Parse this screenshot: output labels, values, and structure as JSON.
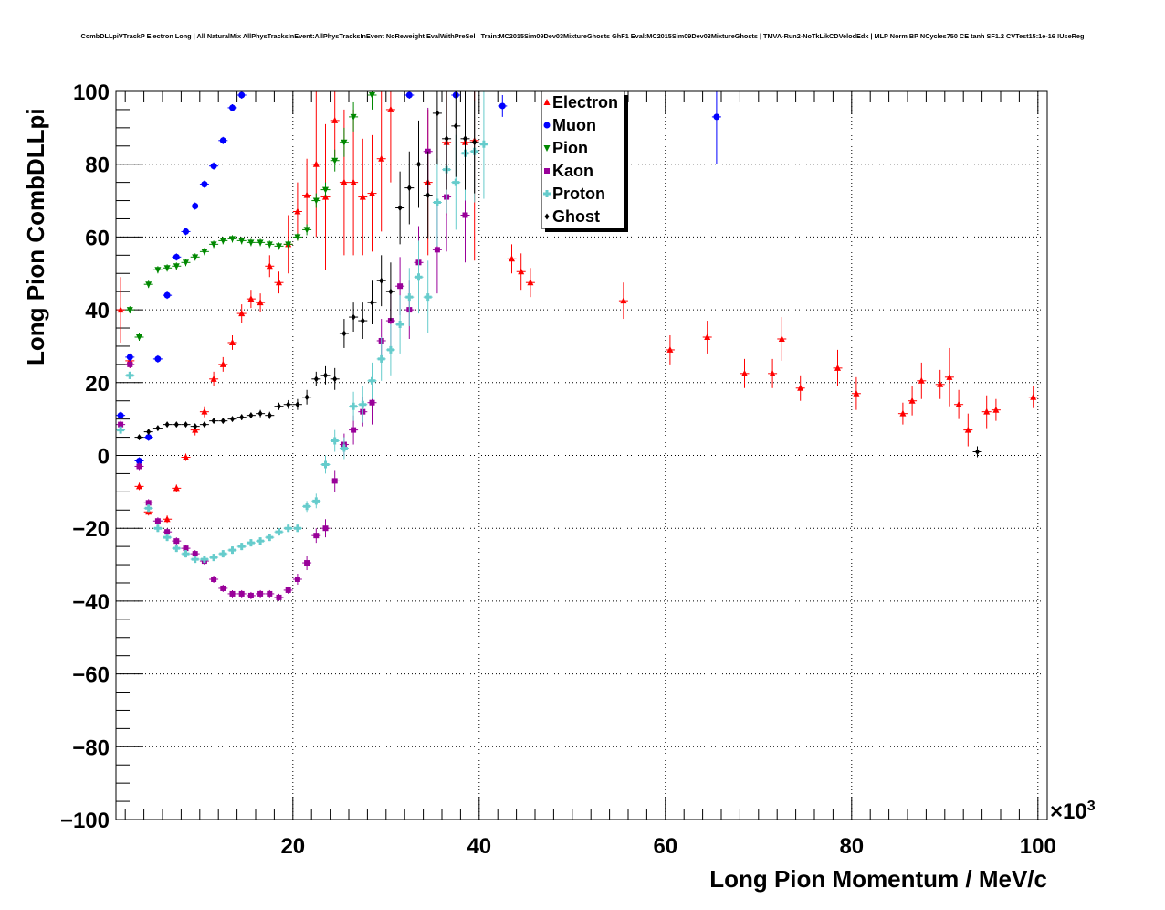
{
  "chart_data": {
    "type": "scatter",
    "title": "CombDLLpiVTrackP Electron Long | All NaturalMix AllPhysTracksInEvent:AllPhysTracksInEvent NoReweight EvalWithPreSel | Train:MC2015Sim09Dev03MixtureGhosts GhF1 Eval:MC2015Sim09Dev03MixtureGhosts | TMVA-Run2-NoTkLikCDVelodEdx | MLP Norm BP NCycles750 CE tanh SF1.2 CVTest15:1e-16 !UseReg",
    "xlabel": "Long Pion Momentum / MeV/c",
    "ylabel": "Long Pion CombDLLpi",
    "x_multiplier": "×10",
    "x_multiplier_exp": "3",
    "xlim": [
      1,
      101
    ],
    "ylim": [
      -100,
      100
    ],
    "xticks": [
      "20",
      "40",
      "60",
      "80",
      "100"
    ],
    "xtick_values": [
      20,
      40,
      60,
      80,
      100
    ],
    "yticks": [
      "−100",
      "−80",
      "−60",
      "−40",
      "−20",
      "0",
      "20",
      "40",
      "60",
      "80",
      "100"
    ],
    "ytick_values": [
      -100,
      -80,
      -60,
      -40,
      -20,
      0,
      20,
      40,
      60,
      80,
      100
    ],
    "grid": true,
    "legend_position": "top-center",
    "series": [
      {
        "name": "Electron",
        "color": "#ff0000",
        "marker": "triangle-up",
        "points": [
          [
            1.5,
            40,
            9
          ],
          [
            2.5,
            26,
            2
          ],
          [
            3.5,
            -8.5,
            1
          ],
          [
            4.5,
            -15.5,
            1
          ],
          [
            6.5,
            -17.5,
            1
          ],
          [
            7.5,
            -9,
            1
          ],
          [
            8.5,
            -0.5,
            1
          ],
          [
            9.5,
            7,
            1.5
          ],
          [
            10.5,
            12,
            1.5
          ],
          [
            11.5,
            21,
            2
          ],
          [
            12.5,
            25,
            2
          ],
          [
            13.5,
            31,
            2
          ],
          [
            14.5,
            39,
            2.5
          ],
          [
            15.5,
            43,
            2.5
          ],
          [
            16.5,
            42,
            2.5
          ],
          [
            17.5,
            52,
            3
          ],
          [
            18.5,
            47.5,
            3
          ],
          [
            19.5,
            58,
            8
          ],
          [
            20.5,
            67,
            8
          ],
          [
            21.5,
            71.5,
            10
          ],
          [
            22.5,
            80,
            20
          ],
          [
            23.5,
            71,
            20
          ],
          [
            24.5,
            92,
            10
          ],
          [
            25.5,
            75,
            20
          ],
          [
            26.5,
            75,
            20
          ],
          [
            27.5,
            71,
            16
          ],
          [
            28.5,
            72,
            16
          ],
          [
            29.5,
            81.5,
            20
          ],
          [
            30.5,
            95,
            20
          ],
          [
            34.5,
            75,
            20
          ],
          [
            36.5,
            86,
            20
          ],
          [
            38.5,
            86,
            20
          ],
          [
            39.5,
            86.5,
            33
          ],
          [
            43.5,
            54,
            4
          ],
          [
            44.5,
            50.5,
            5
          ],
          [
            45.5,
            47.5,
            4
          ],
          [
            55.5,
            42.5,
            5
          ],
          [
            60.5,
            29,
            4
          ],
          [
            64.5,
            32.5,
            4.5
          ],
          [
            68.5,
            22.5,
            4
          ],
          [
            71.5,
            22.5,
            4
          ],
          [
            72.5,
            32,
            6
          ],
          [
            74.5,
            18.5,
            3.5
          ],
          [
            78.5,
            24,
            5
          ],
          [
            80.5,
            17,
            4.5
          ],
          [
            85.5,
            11.5,
            3
          ],
          [
            86.5,
            15,
            4
          ],
          [
            87.5,
            20.5,
            5
          ],
          [
            89.5,
            19.5,
            4
          ],
          [
            90.5,
            21.5,
            8
          ],
          [
            91.5,
            14,
            4
          ],
          [
            92.5,
            7,
            4.5
          ],
          [
            94.5,
            12,
            4.5
          ],
          [
            95.5,
            12.5,
            3
          ],
          [
            99.5,
            16,
            3
          ]
        ]
      },
      {
        "name": "Muon",
        "color": "#0000ff",
        "marker": "circle",
        "points": [
          [
            1.5,
            11,
            1
          ],
          [
            2.5,
            27,
            1
          ],
          [
            3.5,
            -1.5,
            1
          ],
          [
            4.5,
            5,
            1
          ],
          [
            5.5,
            26.5,
            1
          ],
          [
            6.5,
            44,
            1
          ],
          [
            7.5,
            54.5,
            1
          ],
          [
            8.5,
            61.5,
            1
          ],
          [
            9.5,
            68.5,
            1
          ],
          [
            10.5,
            74.5,
            1
          ],
          [
            11.5,
            79.5,
            1
          ],
          [
            12.5,
            86.5,
            1
          ],
          [
            13.5,
            95.5,
            1
          ],
          [
            14.5,
            99,
            1
          ],
          [
            32.5,
            99,
            1
          ],
          [
            37.5,
            99,
            1
          ],
          [
            42.5,
            96,
            3
          ],
          [
            65.5,
            93,
            13
          ]
        ]
      },
      {
        "name": "Pion",
        "color": "#008800",
        "marker": "triangle-down",
        "points": [
          [
            2.5,
            40,
            1
          ],
          [
            3.5,
            32.5,
            1
          ],
          [
            4.5,
            47,
            1
          ],
          [
            5.5,
            51,
            1
          ],
          [
            6.5,
            51.5,
            1
          ],
          [
            7.5,
            52,
            1
          ],
          [
            8.5,
            53,
            1
          ],
          [
            9.5,
            54.5,
            1
          ],
          [
            10.5,
            56,
            1
          ],
          [
            11.5,
            58,
            1
          ],
          [
            12.5,
            59,
            1
          ],
          [
            13.5,
            59.5,
            1
          ],
          [
            14.5,
            59,
            1
          ],
          [
            15.5,
            58.5,
            1
          ],
          [
            16.5,
            58.5,
            1
          ],
          [
            17.5,
            58,
            1
          ],
          [
            18.5,
            57.5,
            1
          ],
          [
            19.5,
            58,
            1
          ],
          [
            20.5,
            60,
            1
          ],
          [
            21.5,
            62,
            1.5
          ],
          [
            22.5,
            70,
            2
          ],
          [
            23.5,
            73,
            2
          ],
          [
            24.5,
            81,
            3
          ],
          [
            25.5,
            86,
            4
          ],
          [
            26.5,
            93,
            4
          ],
          [
            28.5,
            99,
            4
          ]
        ]
      },
      {
        "name": "Kaon",
        "color": "#990099",
        "marker": "square",
        "points": [
          [
            1.5,
            8.5,
            1
          ],
          [
            2.5,
            25,
            1
          ],
          [
            3.5,
            -3,
            1
          ],
          [
            4.5,
            -13,
            1
          ],
          [
            5.5,
            -18,
            1
          ],
          [
            6.5,
            -21,
            1
          ],
          [
            7.5,
            -23.5,
            1
          ],
          [
            8.5,
            -25.5,
            1
          ],
          [
            9.5,
            -27,
            1
          ],
          [
            10.5,
            -29,
            1
          ],
          [
            11.5,
            -34,
            1
          ],
          [
            12.5,
            -36.5,
            1
          ],
          [
            13.5,
            -38,
            1
          ],
          [
            14.5,
            -38,
            1
          ],
          [
            15.5,
            -38.5,
            1
          ],
          [
            16.5,
            -38,
            1
          ],
          [
            17.5,
            -38,
            1
          ],
          [
            18.5,
            -39,
            1
          ],
          [
            19.5,
            -37,
            1
          ],
          [
            20.5,
            -34,
            1.5
          ],
          [
            21.5,
            -29.5,
            2
          ],
          [
            22.5,
            -22,
            2
          ],
          [
            23.5,
            -20,
            2.5
          ],
          [
            24.5,
            -7,
            3
          ],
          [
            25.5,
            3,
            3
          ],
          [
            26.5,
            7,
            4
          ],
          [
            27.5,
            12,
            4
          ],
          [
            28.5,
            14.5,
            6
          ],
          [
            29.5,
            31.5,
            6
          ],
          [
            30.5,
            37,
            8
          ],
          [
            31.5,
            46.5,
            8
          ],
          [
            32.5,
            40,
            8
          ],
          [
            33.5,
            53,
            10
          ],
          [
            34.5,
            83.5,
            12
          ],
          [
            35.5,
            56.5,
            12
          ],
          [
            36.5,
            71,
            15
          ],
          [
            38.5,
            66,
            13
          ]
        ]
      },
      {
        "name": "Proton",
        "color": "#66cccc",
        "marker": "cross",
        "points": [
          [
            1.5,
            7,
            1
          ],
          [
            2.5,
            22,
            1
          ],
          [
            4.5,
            -14.5,
            1
          ],
          [
            5.5,
            -20,
            1
          ],
          [
            6.5,
            -22.5,
            1
          ],
          [
            7.5,
            -25.5,
            1
          ],
          [
            8.5,
            -27,
            1
          ],
          [
            9.5,
            -28.5,
            1
          ],
          [
            10.5,
            -28.5,
            1
          ],
          [
            11.5,
            -28,
            1
          ],
          [
            12.5,
            -27,
            1
          ],
          [
            13.5,
            -26,
            1
          ],
          [
            14.5,
            -25,
            1
          ],
          [
            15.5,
            -24,
            1
          ],
          [
            16.5,
            -23.5,
            1
          ],
          [
            17.5,
            -22.5,
            1
          ],
          [
            18.5,
            -21,
            1
          ],
          [
            19.5,
            -20,
            1
          ],
          [
            20.5,
            -20,
            1
          ],
          [
            21.5,
            -14,
            1.5
          ],
          [
            22.5,
            -12.5,
            2
          ],
          [
            23.5,
            -2.5,
            2.5
          ],
          [
            24.5,
            4,
            3
          ],
          [
            25.5,
            2,
            3
          ],
          [
            26.5,
            13.5,
            4
          ],
          [
            27.5,
            14,
            5
          ],
          [
            28.5,
            20.5,
            5
          ],
          [
            29.5,
            26.5,
            6
          ],
          [
            30.5,
            29,
            7
          ],
          [
            31.5,
            36,
            8
          ],
          [
            32.5,
            43.5,
            8
          ],
          [
            33.5,
            49,
            10
          ],
          [
            34.5,
            43.5,
            10
          ],
          [
            35.5,
            69.5,
            12
          ],
          [
            36.5,
            78.5,
            12
          ],
          [
            37.5,
            75,
            13
          ],
          [
            38.5,
            83,
            13
          ],
          [
            39.5,
            83.5,
            14
          ],
          [
            40.5,
            85.5,
            15
          ]
        ]
      },
      {
        "name": "Ghost",
        "color": "#000000",
        "marker": "diamond",
        "points": [
          [
            3.5,
            5,
            0.7
          ],
          [
            4.5,
            6.5,
            0.7
          ],
          [
            5.5,
            7.5,
            0.7
          ],
          [
            6.5,
            8.5,
            0.7
          ],
          [
            7.5,
            8.5,
            0.7
          ],
          [
            8.5,
            8.5,
            0.7
          ],
          [
            9.5,
            8,
            0.7
          ],
          [
            10.5,
            8.5,
            0.7
          ],
          [
            11.5,
            9.5,
            0.7
          ],
          [
            12.5,
            9.5,
            0.7
          ],
          [
            13.5,
            10,
            0.7
          ],
          [
            14.5,
            10.5,
            0.8
          ],
          [
            15.5,
            11,
            0.8
          ],
          [
            16.5,
            11.5,
            1
          ],
          [
            17.5,
            11,
            1
          ],
          [
            18.5,
            13.5,
            1
          ],
          [
            19.5,
            14,
            1.2
          ],
          [
            20.5,
            14,
            1.5
          ],
          [
            21.5,
            16,
            2
          ],
          [
            22.5,
            21,
            2
          ],
          [
            23.5,
            22,
            2.5
          ],
          [
            24.5,
            21,
            3
          ],
          [
            25.5,
            33.5,
            4
          ],
          [
            26.5,
            38,
            4
          ],
          [
            27.5,
            37,
            5
          ],
          [
            28.5,
            42,
            6
          ],
          [
            29.5,
            48,
            7
          ],
          [
            30.5,
            45,
            8
          ],
          [
            31.5,
            68,
            10
          ],
          [
            32.5,
            73.5,
            10
          ],
          [
            33.5,
            80,
            12
          ],
          [
            34.5,
            71.5,
            12
          ],
          [
            35.5,
            94,
            14
          ],
          [
            36.5,
            87,
            14
          ],
          [
            37.5,
            90.5,
            14
          ],
          [
            38.5,
            87,
            14
          ],
          [
            39.5,
            86,
            14
          ],
          [
            93.5,
            1,
            1.5
          ]
        ]
      }
    ]
  }
}
